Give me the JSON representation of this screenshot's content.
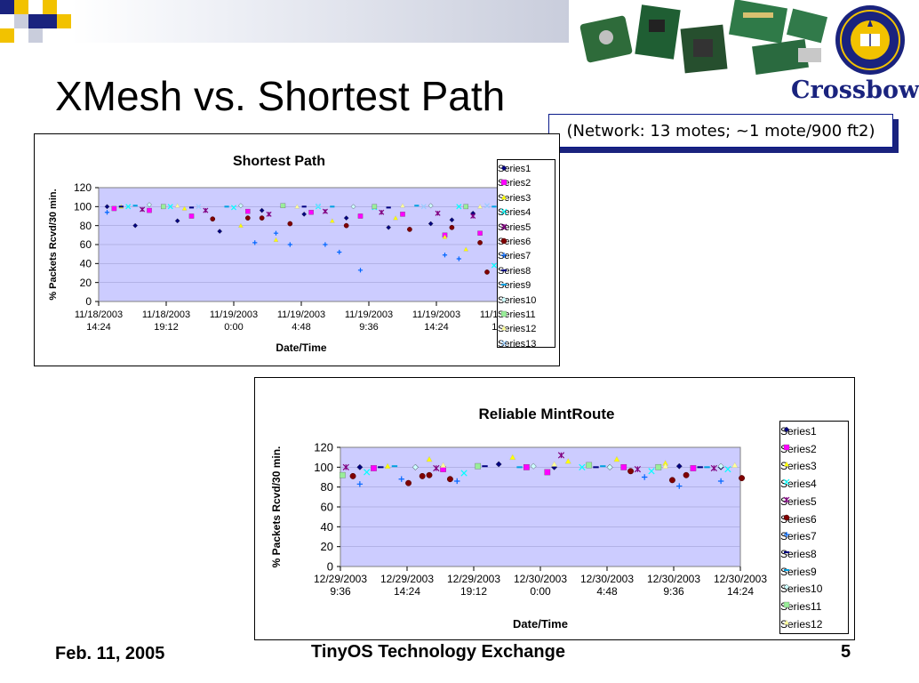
{
  "slide": {
    "title": "XMesh vs. Shortest Path",
    "note": "(Network: 13 motes; ~1 mote/900 ft2)",
    "footer_left": "Feb. 11, 2005",
    "footer_center": "TinyOS Technology Exchange",
    "page_number": "5",
    "brand": "Crossbow",
    "seal_text": "UNIVERSITY OF CALIFORNIA BERKELEY",
    "accent_color": "#1a237e"
  },
  "chart_data": [
    {
      "type": "scatter",
      "title": "Shortest Path",
      "xlabel": "Date/Time",
      "ylabel": "% Packets Rcvd/30 min.",
      "ylim": [
        0,
        120
      ],
      "yticks": [
        0,
        20,
        40,
        60,
        80,
        100,
        120
      ],
      "xticks": [
        {
          "value": "2003-11-18 14:24",
          "label": [
            "11/18/2003",
            "14:24"
          ]
        },
        {
          "value": "2003-11-18 19:12",
          "label": [
            "11/18/2003",
            "19:12"
          ]
        },
        {
          "value": "2003-11-19 00:00",
          "label": [
            "11/19/2003",
            "0:00"
          ]
        },
        {
          "value": "2003-11-19 04:48",
          "label": [
            "11/19/2003",
            "4:48"
          ]
        },
        {
          "value": "2003-11-19 09:36",
          "label": [
            "11/19/2003",
            "9:36"
          ]
        },
        {
          "value": "2003-11-19 14:24",
          "label": [
            "11/19/2003",
            "14:24"
          ]
        },
        {
          "value": "2003-11-19 19:12",
          "label": [
            "11/19/2003",
            "19:12"
          ]
        }
      ],
      "plot_background": "#ccccff",
      "legend_position": "right",
      "series": [
        {
          "name": "Series1",
          "color": "#000080",
          "marker": "diamond",
          "x": [
            "2003-11-18 15:00",
            "2003-11-18 17:00",
            "2003-11-18 20:00",
            "2003-11-18 23:00",
            "2003-11-19 02:00",
            "2003-11-19 05:00",
            "2003-11-19 08:00",
            "2003-11-19 11:00",
            "2003-11-19 14:00",
            "2003-11-19 15:30",
            "2003-11-19 17:00"
          ],
          "values": [
            100,
            80,
            85,
            74,
            96,
            92,
            88,
            78,
            82,
            86,
            93
          ]
        },
        {
          "name": "Series2",
          "color": "#ff00ff",
          "marker": "square",
          "x": [
            "2003-11-18 15:30",
            "2003-11-18 18:00",
            "2003-11-18 21:00",
            "2003-11-19 01:00",
            "2003-11-19 05:30",
            "2003-11-19 09:00",
            "2003-11-19 12:00",
            "2003-11-19 15:00",
            "2003-11-19 17:30"
          ],
          "values": [
            98,
            96,
            90,
            95,
            94,
            90,
            92,
            70,
            72
          ]
        },
        {
          "name": "Series3",
          "color": "#ffff00",
          "marker": "triangle",
          "x": [
            "2003-11-18 16:00",
            "2003-11-18 20:30",
            "2003-11-19 00:30",
            "2003-11-19 03:00",
            "2003-11-19 07:00",
            "2003-11-19 11:30",
            "2003-11-19 15:00",
            "2003-11-19 16:30"
          ],
          "values": [
            100,
            98,
            80,
            65,
            85,
            88,
            68,
            55
          ]
        },
        {
          "name": "Series4",
          "color": "#00ffff",
          "marker": "x",
          "x": [
            "2003-11-18 16:30",
            "2003-11-18 19:30",
            "2003-11-19 00:00",
            "2003-11-19 06:00",
            "2003-11-19 10:00",
            "2003-11-19 16:00",
            "2003-11-19 18:30"
          ],
          "values": [
            100,
            100,
            99,
            100,
            99,
            100,
            38
          ]
        },
        {
          "name": "Series5",
          "color": "#800080",
          "marker": "star",
          "x": [
            "2003-11-18 17:30",
            "2003-11-18 22:00",
            "2003-11-19 02:30",
            "2003-11-19 06:30",
            "2003-11-19 10:30",
            "2003-11-19 14:30",
            "2003-11-19 17:00"
          ],
          "values": [
            97,
            96,
            92,
            95,
            94,
            93,
            90
          ]
        },
        {
          "name": "Series6",
          "color": "#800000",
          "marker": "circle",
          "x": [
            "2003-11-18 22:30",
            "2003-11-19 01:00",
            "2003-11-19 02:00",
            "2003-11-19 04:00",
            "2003-11-19 08:00",
            "2003-11-19 12:30",
            "2003-11-19 15:30",
            "2003-11-19 17:30",
            "2003-11-19 18:00"
          ],
          "values": [
            87,
            88,
            88,
            82,
            80,
            76,
            78,
            62,
            31
          ]
        },
        {
          "name": "Series7",
          "color": "#0066ff",
          "marker": "plus",
          "x": [
            "2003-11-18 15:00",
            "2003-11-19 01:30",
            "2003-11-19 03:00",
            "2003-11-19 04:00",
            "2003-11-19 06:30",
            "2003-11-19 07:30",
            "2003-11-19 09:00",
            "2003-11-19 15:00",
            "2003-11-19 16:00"
          ],
          "values": [
            94,
            62,
            72,
            60,
            60,
            52,
            33,
            49,
            45
          ]
        },
        {
          "name": "Series8",
          "color": "#000080",
          "marker": "dash",
          "x": [
            "2003-11-18 16:00",
            "2003-11-18 21:00",
            "2003-11-19 05:00",
            "2003-11-19 11:00",
            "2003-11-19 16:30"
          ],
          "values": [
            100,
            99,
            100,
            99,
            100
          ]
        },
        {
          "name": "Series9",
          "color": "#00a0e0",
          "marker": "dash",
          "x": [
            "2003-11-18 17:00",
            "2003-11-18 23:30",
            "2003-11-19 07:00",
            "2003-11-19 13:00",
            "2003-11-19 18:30"
          ],
          "values": [
            101,
            100,
            100,
            101,
            100
          ]
        },
        {
          "name": "Series10",
          "color": "#ccffff",
          "marker": "diamond",
          "x": [
            "2003-11-18 18:00",
            "2003-11-19 00:30",
            "2003-11-19 08:30",
            "2003-11-19 14:00"
          ],
          "values": [
            102,
            101,
            100,
            101
          ]
        },
        {
          "name": "Series11",
          "color": "#99ee99",
          "marker": "square",
          "x": [
            "2003-11-18 19:00",
            "2003-11-19 03:30",
            "2003-11-19 10:00",
            "2003-11-19 16:30"
          ],
          "values": [
            100,
            101,
            100,
            100
          ]
        },
        {
          "name": "Series12",
          "color": "#ffff99",
          "marker": "triangle",
          "x": [
            "2003-11-18 20:00",
            "2003-11-19 04:30",
            "2003-11-19 12:00",
            "2003-11-19 17:30"
          ],
          "values": [
            101,
            100,
            101,
            100
          ]
        },
        {
          "name": "Series13",
          "color": "#99ccff",
          "marker": "x",
          "x": [
            "2003-11-18 21:30",
            "2003-11-19 06:00",
            "2003-11-19 13:30",
            "2003-11-19 18:00"
          ],
          "values": [
            100,
            101,
            100,
            101
          ]
        }
      ]
    },
    {
      "type": "scatter",
      "title": "Reliable MintRoute",
      "xlabel": "Date/Time",
      "ylabel": "% Packets Rcvd/30 min.",
      "ylim": [
        0,
        120
      ],
      "yticks": [
        0,
        20,
        40,
        60,
        80,
        100,
        120
      ],
      "xticks": [
        {
          "value": "2003-12-29 09:36",
          "label": [
            "12/29/2003",
            "9:36"
          ]
        },
        {
          "value": "2003-12-29 14:24",
          "label": [
            "12/29/2003",
            "14:24"
          ]
        },
        {
          "value": "2003-12-29 19:12",
          "label": [
            "12/29/2003",
            "19:12"
          ]
        },
        {
          "value": "2003-12-30 00:00",
          "label": [
            "12/30/2003",
            "0:00"
          ]
        },
        {
          "value": "2003-12-30 04:48",
          "label": [
            "12/30/2003",
            "4:48"
          ]
        },
        {
          "value": "2003-12-30 09:36",
          "label": [
            "12/30/2003",
            "9:36"
          ]
        },
        {
          "value": "2003-12-30 14:24",
          "label": [
            "12/30/2003",
            "14:24"
          ]
        }
      ],
      "plot_background": "#ccccff",
      "legend_position": "right",
      "series": [
        {
          "name": "Series1",
          "color": "#000080",
          "marker": "diamond",
          "x": [
            "2003-12-29 11:00",
            "2003-12-29 15:00",
            "2003-12-29 21:00",
            "2003-12-30 01:00",
            "2003-12-30 05:00",
            "2003-12-30 10:00",
            "2003-12-30 13:00"
          ],
          "values": [
            100,
            100,
            103,
            100,
            100,
            101,
            100
          ]
        },
        {
          "name": "Series2",
          "color": "#ff00ff",
          "marker": "square",
          "x": [
            "2003-12-29 12:00",
            "2003-12-29 17:00",
            "2003-12-29 23:00",
            "2003-12-30 00:30",
            "2003-12-30 06:00",
            "2003-12-30 11:00"
          ],
          "values": [
            99,
            98,
            100,
            95,
            100,
            99
          ]
        },
        {
          "name": "Series3",
          "color": "#ffff00",
          "marker": "triangle",
          "x": [
            "2003-12-29 13:00",
            "2003-12-29 16:00",
            "2003-12-29 22:00",
            "2003-12-30 02:00",
            "2003-12-30 05:30",
            "2003-12-30 09:00"
          ],
          "values": [
            101,
            108,
            110,
            106,
            108,
            104
          ]
        },
        {
          "name": "Series4",
          "color": "#00ffff",
          "marker": "x",
          "x": [
            "2003-12-29 11:30",
            "2003-12-29 18:30",
            "2003-12-30 03:00",
            "2003-12-30 08:00",
            "2003-12-30 13:30"
          ],
          "values": [
            95,
            94,
            100,
            96,
            98
          ]
        },
        {
          "name": "Series5",
          "color": "#800080",
          "marker": "star",
          "x": [
            "2003-12-29 10:00",
            "2003-12-29 16:30",
            "2003-12-30 01:30",
            "2003-12-30 07:00",
            "2003-12-30 12:30"
          ],
          "values": [
            100,
            99,
            112,
            98,
            99
          ]
        },
        {
          "name": "Series6",
          "color": "#800000",
          "marker": "circle",
          "x": [
            "2003-12-29 10:30",
            "2003-12-29 14:30",
            "2003-12-29 15:30",
            "2003-12-29 16:00",
            "2003-12-29 17:30",
            "2003-12-30 06:30",
            "2003-12-30 09:30",
            "2003-12-30 10:30",
            "2003-12-30 14:30"
          ],
          "values": [
            91,
            84,
            91,
            92,
            88,
            96,
            87,
            92,
            89
          ]
        },
        {
          "name": "Series7",
          "color": "#0066ff",
          "marker": "plus",
          "x": [
            "2003-12-29 11:00",
            "2003-12-29 14:00",
            "2003-12-29 18:00",
            "2003-12-30 07:30",
            "2003-12-30 10:00",
            "2003-12-30 13:00"
          ],
          "values": [
            83,
            88,
            86,
            90,
            81,
            86
          ]
        },
        {
          "name": "Series8",
          "color": "#000080",
          "marker": "dash",
          "x": [
            "2003-12-29 12:30",
            "2003-12-29 20:00",
            "2003-12-30 04:00",
            "2003-12-30 11:30"
          ],
          "values": [
            100,
            101,
            100,
            100
          ]
        },
        {
          "name": "Series9",
          "color": "#00a0e0",
          "marker": "dash",
          "x": [
            "2003-12-29 13:30",
            "2003-12-29 22:30",
            "2003-12-30 04:30",
            "2003-12-30 12:00"
          ],
          "values": [
            101,
            100,
            101,
            100
          ]
        },
        {
          "name": "Series10",
          "color": "#ccffff",
          "marker": "diamond",
          "x": [
            "2003-12-29 15:00",
            "2003-12-29 23:30",
            "2003-12-30 05:00",
            "2003-12-30 13:00"
          ],
          "values": [
            100,
            101,
            100,
            101
          ]
        },
        {
          "name": "Series11",
          "color": "#99ee99",
          "marker": "square",
          "x": [
            "2003-12-29 09:45",
            "2003-12-29 19:30",
            "2003-12-30 03:30",
            "2003-12-30 08:30"
          ],
          "values": [
            92,
            101,
            102,
            100
          ]
        },
        {
          "name": "Series12",
          "color": "#ffff99",
          "marker": "triangle",
          "x": [
            "2003-12-29 17:00",
            "2003-12-30 01:00",
            "2003-12-30 09:00",
            "2003-12-30 14:00"
          ],
          "values": [
            102,
            103,
            101,
            102
          ]
        }
      ]
    }
  ]
}
